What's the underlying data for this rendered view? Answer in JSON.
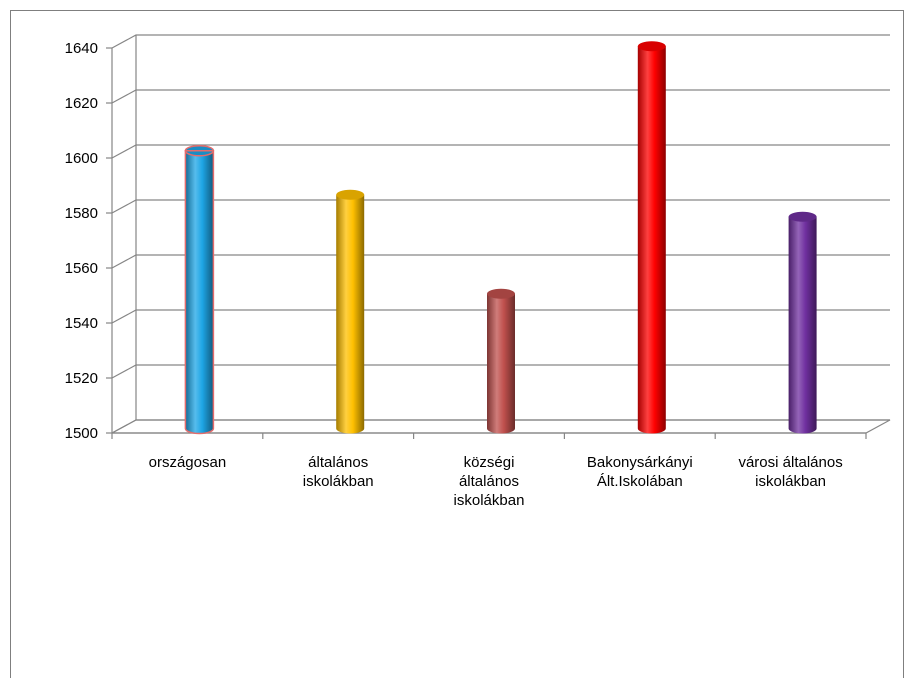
{
  "chart_data": {
    "type": "bar",
    "title": "",
    "xlabel": "",
    "ylabel": "",
    "ylim": [
      1500,
      1640
    ],
    "yticks": [
      1500,
      1520,
      1540,
      1560,
      1580,
      1600,
      1620,
      1640
    ],
    "grid": true,
    "style": "3d-cylinder",
    "categories": [
      [
        "országosan"
      ],
      [
        "általános",
        "iskolákban"
      ],
      [
        "községi",
        "általános",
        "iskolákban"
      ],
      [
        "Bakonysárkányi",
        "Ált.Iskolában"
      ],
      [
        "városi általános",
        "iskolákban"
      ]
    ],
    "values": [
      1601,
      1585,
      1549,
      1639,
      1577
    ],
    "colors": [
      "#1ea6e6",
      "#ffc000",
      "#c0504d",
      "#ff0000",
      "#7030a0"
    ]
  }
}
